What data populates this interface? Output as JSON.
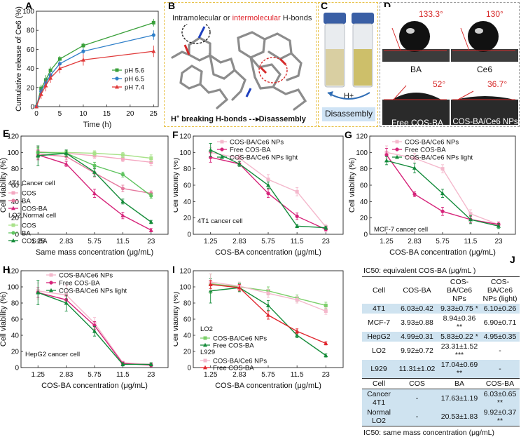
{
  "chart_data": [
    {
      "panel": "A",
      "type": "line",
      "xlabel": "Time (h)",
      "ylabel": "Cumulative release of Ce6 (%)",
      "xlim": [
        0,
        26
      ],
      "ylim": [
        0,
        100
      ],
      "x_ticks": [
        "0",
        "5",
        "10",
        "15",
        "20",
        "25"
      ],
      "y_ticks": [
        "0",
        "20",
        "40",
        "60",
        "80",
        "100"
      ],
      "x": [
        0,
        1,
        2,
        3,
        5,
        10,
        25
      ],
      "series": [
        {
          "name": "pH 5.6",
          "color": "#3aa03a",
          "marker": "square",
          "values": [
            0,
            19,
            28,
            38,
            50,
            64,
            88
          ],
          "err": [
            1,
            4,
            5,
            4,
            3,
            3,
            4
          ]
        },
        {
          "name": "pH 6.5",
          "color": "#2f7fc9",
          "marker": "circle",
          "values": [
            0,
            16,
            25,
            33,
            45,
            58,
            75
          ],
          "err": [
            1,
            4,
            5,
            4,
            3,
            3,
            5
          ]
        },
        {
          "name": "pH 7.4",
          "color": "#e03a3a",
          "marker": "triangle",
          "values": [
            0,
            13,
            22,
            30,
            40,
            49,
            58
          ],
          "err": [
            1,
            5,
            6,
            5,
            5,
            6,
            6
          ]
        }
      ],
      "legend_position": "right"
    },
    {
      "panel": "E",
      "type": "line",
      "xlabel": "Same mass concentration (μg/mL)",
      "ylabel": "Cell viability (%)",
      "ylim": [
        0,
        120
      ],
      "categories": [
        "1.25",
        "2.83",
        "5.75",
        "11.5",
        "23"
      ],
      "y_ticks": [
        "0",
        "20",
        "40",
        "60",
        "80",
        "100",
        "120"
      ],
      "legend_groups": [
        "4T1 Cancer cell",
        "LO2 Normal cell"
      ],
      "series": [
        {
          "group": "4T1 Cancer cell",
          "name": "COS",
          "color": "#f4a7c0",
          "values": [
            101,
            99,
            96,
            92,
            88
          ],
          "err": [
            6,
            4,
            3,
            3,
            4
          ]
        },
        {
          "group": "4T1 Cancer cell",
          "name": "BA",
          "color": "#e5799e",
          "values": [
            98,
            95,
            75,
            56,
            50
          ],
          "err": [
            5,
            4,
            5,
            4,
            3
          ]
        },
        {
          "group": "4T1 Cancer cell",
          "name": "COS-BA",
          "color": "#d6247a",
          "values": [
            97,
            86,
            50,
            23,
            5
          ],
          "err": [
            6,
            3,
            5,
            4,
            2
          ]
        },
        {
          "group": "LO2 Normal cell",
          "name": "COS",
          "color": "#a9e28a",
          "values": [
            100,
            100,
            99,
            97,
            93
          ],
          "err": [
            5,
            3,
            3,
            3,
            4
          ]
        },
        {
          "group": "LO2 Normal cell",
          "name": "BA",
          "color": "#5fc45f",
          "values": [
            100,
            99,
            84,
            73,
            47
          ],
          "err": [
            6,
            3,
            4,
            3,
            3
          ]
        },
        {
          "group": "LO2 Normal cell",
          "name": "COS-BA",
          "color": "#168c3a",
          "values": [
            96,
            99,
            76,
            40,
            15
          ],
          "err": [
            12,
            4,
            5,
            3,
            2
          ]
        }
      ]
    },
    {
      "panel": "F",
      "type": "line",
      "xlabel": "COS-BA concentration (μg/mL)",
      "ylabel": "Cell viability (%)",
      "ylim": [
        0,
        120
      ],
      "categories": [
        "1.25",
        "2.83",
        "5.75",
        "11.5",
        "23"
      ],
      "y_ticks": [
        "0",
        "20",
        "40",
        "60",
        "80",
        "100",
        "120"
      ],
      "annotation": "4T1 cancer cell",
      "series": [
        {
          "name": "COS-BA/Ce6 NPs",
          "color": "#f4b8cc",
          "values": [
            100,
            93,
            67,
            52,
            9
          ],
          "err": [
            6,
            4,
            6,
            5,
            3
          ]
        },
        {
          "name": "Free COS-BA",
          "color": "#d6247a",
          "values": [
            94,
            86,
            50,
            22,
            6
          ],
          "err": [
            6,
            3,
            5,
            4,
            2
          ]
        },
        {
          "name": "COS-BA/Ce6 NPs light",
          "color": "#128a3a",
          "values": [
            103,
            86,
            60,
            10,
            8
          ],
          "err": [
            8,
            3,
            4,
            2,
            2
          ]
        }
      ]
    },
    {
      "panel": "G",
      "type": "line",
      "xlabel": "COS-BA concentration (μg/mL)",
      "ylabel": "Cell viability (%)",
      "ylim": [
        0,
        120
      ],
      "categories": [
        "1.25",
        "2.83",
        "5.75",
        "11.5",
        "23"
      ],
      "y_ticks": [
        "0",
        "20",
        "40",
        "60",
        "80",
        "100",
        "120"
      ],
      "annotation": "MCF-7 cancer cell",
      "series": [
        {
          "name": "COS-BA/Ce6 NPs",
          "color": "#f4b8cc",
          "values": [
            100,
            93,
            80,
            25,
            12
          ],
          "err": [
            8,
            6,
            5,
            5,
            3
          ]
        },
        {
          "name": "Free COS-BA",
          "color": "#d6247a",
          "values": [
            97,
            49,
            28,
            18,
            12
          ],
          "err": [
            8,
            3,
            5,
            4,
            3
          ]
        },
        {
          "name": "COS-BA/Ce6 NPs light",
          "color": "#128a3a",
          "values": [
            90,
            81,
            50,
            18,
            10
          ],
          "err": [
            5,
            6,
            5,
            5,
            3
          ]
        }
      ]
    },
    {
      "panel": "H",
      "type": "line",
      "xlabel": "COS-BA concentration (μg/mL)",
      "ylabel": "Cell viability (%)",
      "ylim": [
        0,
        120
      ],
      "categories": [
        "1.25",
        "2.83",
        "5.75",
        "11.5",
        "23"
      ],
      "y_ticks": [
        "0",
        "20",
        "40",
        "60",
        "80",
        "100",
        "120"
      ],
      "annotation": "HepG2 cancer cell",
      "series": [
        {
          "name": "COS-BA/Ce6 NPs",
          "color": "#f4b8cc",
          "values": [
            95,
            90,
            55,
            6,
            4
          ],
          "err": [
            10,
            12,
            7,
            2,
            2
          ]
        },
        {
          "name": "Free COS-BA",
          "color": "#d6247a",
          "values": [
            93,
            84,
            52,
            5,
            3
          ],
          "err": [
            6,
            5,
            5,
            2,
            2
          ]
        },
        {
          "name": "COS-BA/Ce6 NPs light",
          "color": "#128a3a",
          "values": [
            93,
            80,
            45,
            4,
            4
          ],
          "err": [
            15,
            10,
            6,
            2,
            2
          ]
        }
      ]
    },
    {
      "panel": "I",
      "type": "line",
      "xlabel": "COS-BA concentration (μg/mL)",
      "ylabel": "Cell viability (%)",
      "ylim": [
        0,
        120
      ],
      "categories": [
        "1.25",
        "2.83",
        "5.75",
        "11.5",
        "23"
      ],
      "y_ticks": [
        "0",
        "20",
        "40",
        "60",
        "80",
        "100",
        "120"
      ],
      "legend_groups": [
        "LO2",
        "L929"
      ],
      "series": [
        {
          "group": "LO2",
          "name": "COS-BA/Ce6 NPs",
          "color": "#7ccf6a",
          "values": [
            104,
            100,
            95,
            86,
            77
          ],
          "err": [
            12,
            5,
            5,
            4,
            4
          ]
        },
        {
          "group": "LO2",
          "name": "Free COS-BA",
          "color": "#168c3a",
          "values": [
            95,
            99,
            77,
            40,
            15
          ],
          "err": [
            15,
            5,
            6,
            3,
            2
          ]
        },
        {
          "group": "L929",
          "name": "COS-BA/Ce6 NPs",
          "color": "#f4b8cc",
          "values": [
            106,
            101,
            92,
            84,
            70
          ],
          "err": [
            10,
            5,
            5,
            4,
            4
          ]
        },
        {
          "group": "L929",
          "name": "Free COS-BA",
          "color": "#e0262e",
          "values": [
            103,
            99,
            65,
            45,
            30
          ],
          "err": [
            5,
            4,
            5,
            3,
            2
          ]
        }
      ]
    }
  ],
  "panel_labels": [
    "A",
    "B",
    "C",
    "D",
    "E",
    "F",
    "G",
    "H",
    "I",
    "J"
  ],
  "panel_b": {
    "title_part1": "Intramolecular or ",
    "title_part2": "intermolecular",
    "title_part3": " H-bonds",
    "bottom_part1": "H",
    "bottom_sup": "+",
    "bottom_part2": " breaking H-bonds ",
    "bottom_part3": "Disassembly"
  },
  "panel_c": {
    "arrow_label": "H+",
    "caption": "Disassembly"
  },
  "panel_d": {
    "images": [
      {
        "label": "BA",
        "angle": "133.3°"
      },
      {
        "label": "Ce6",
        "angle": "130°"
      },
      {
        "label": "Free COS-BA",
        "angle": "52°"
      },
      {
        "label": "COS-BA/Ce6 NPs",
        "angle": "36.7°"
      }
    ]
  },
  "table_j": {
    "caption_top": "IC50: equivalent COS-BA (μg/mL )",
    "headers": [
      "Cell",
      "COS-BA",
      "COS-BA/Ce6 NPs",
      "COS-BA/Ce6 NPs (light)"
    ],
    "rows": [
      [
        "4T1",
        "6.03±0.42",
        "9.33±0.75 *",
        "6.10±0.26"
      ],
      [
        "MCF-7",
        "3.93±0.88",
        "8.94±0.36 **",
        "6.90±0.71"
      ],
      [
        "HepG2",
        "4.99±0.31",
        "5.83±0.22 *",
        "4.95±0.35"
      ],
      [
        "LO2",
        "9.92±0.72",
        "23.31±1.52 ***",
        "-"
      ],
      [
        "L929",
        "11.31±1.02",
        "17.04±0.69 **",
        "-"
      ]
    ],
    "headers2": [
      "Cell",
      "COS",
      "BA",
      "COS-BA"
    ],
    "rows2": [
      [
        "Cancer 4T1",
        "-",
        "17.63±1.19",
        "6.03±0.65 **"
      ],
      [
        "Normal LO2",
        "-",
        "20.53±1.83",
        "9.92±0.37 **"
      ]
    ],
    "caption_bottom": "IC50: same mass concentration (μg/mL)"
  }
}
